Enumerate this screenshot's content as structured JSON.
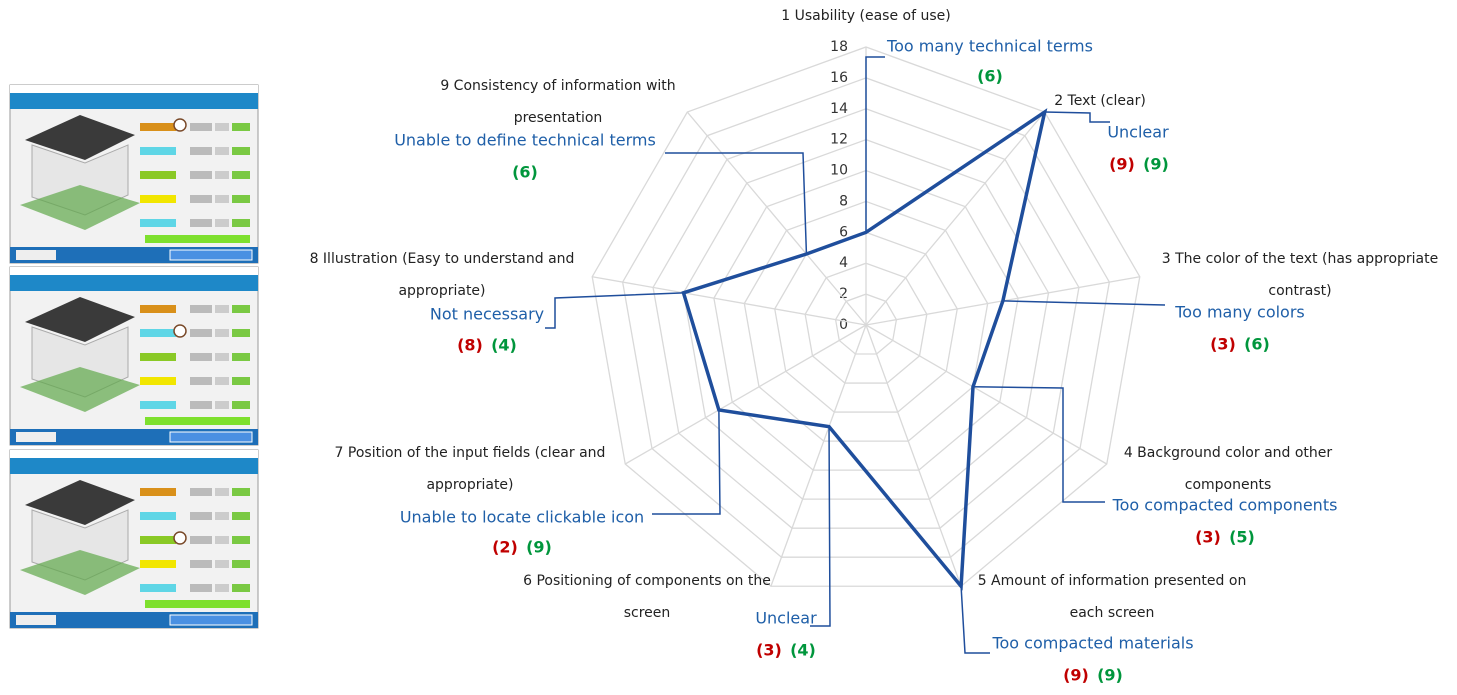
{
  "chart_data": {
    "type": "radar",
    "categories": [
      [
        "1 Usability (ease of use)"
      ],
      [
        "2 Text (clear)"
      ],
      [
        "3 The color of the text (has appropriate",
        "contrast)"
      ],
      [
        "4 Background color and other",
        "components"
      ],
      [
        "5 Amount of information presented on",
        "each screen"
      ],
      [
        "6 Positioning of components on the",
        "screen"
      ],
      [
        "7 Position of the input fields (clear and",
        "appropriate)"
      ],
      [
        "8 Illustration (Easy to understand and",
        "appropriate)"
      ],
      [
        "9 Consistency of information with",
        "presentation"
      ]
    ],
    "values": [
      6,
      18,
      9,
      8,
      18,
      7,
      11,
      12,
      6
    ],
    "color": "#1f4e9c",
    "ylim": [
      0,
      18
    ],
    "yticks": [
      0,
      2,
      4,
      6,
      8,
      10,
      12,
      14,
      16,
      18
    ],
    "grid": true,
    "annotations": [
      {
        "issue": "Too many technical terms",
        "counts": [
          {
            "text": "(6)",
            "color": "#00963c"
          }
        ]
      },
      {
        "issue": "Unclear",
        "counts": [
          {
            "text": "(9)",
            "color": "#c00000"
          },
          {
            "text": "(9)",
            "color": "#00963c"
          }
        ]
      },
      {
        "issue": "Too many colors",
        "counts": [
          {
            "text": "(3)",
            "color": "#c00000"
          },
          {
            "text": "(6)",
            "color": "#00963c"
          }
        ]
      },
      {
        "issue": "Too compacted components",
        "counts": [
          {
            "text": "(3)",
            "color": "#c00000"
          },
          {
            "text": "(5)",
            "color": "#00963c"
          }
        ]
      },
      {
        "issue": "Too compacted materials",
        "counts": [
          {
            "text": "(9)",
            "color": "#c00000"
          },
          {
            "text": "(9)",
            "color": "#00963c"
          }
        ]
      },
      {
        "issue": "Unclear",
        "counts": [
          {
            "text": "(3)",
            "color": "#c00000"
          },
          {
            "text": "(4)",
            "color": "#00963c"
          }
        ]
      },
      {
        "issue": "Unable to locate clickable icon",
        "counts": [
          {
            "text": "(2)",
            "color": "#c00000"
          },
          {
            "text": "(9)",
            "color": "#00963c"
          }
        ]
      },
      {
        "issue": "Not necessary",
        "counts": [
          {
            "text": "(8)",
            "color": "#c00000"
          },
          {
            "text": "(4)",
            "color": "#00963c"
          }
        ]
      },
      {
        "issue": "Unable to define technical terms",
        "counts": [
          {
            "text": "(6)",
            "color": "#00963c"
          }
        ]
      }
    ]
  }
}
